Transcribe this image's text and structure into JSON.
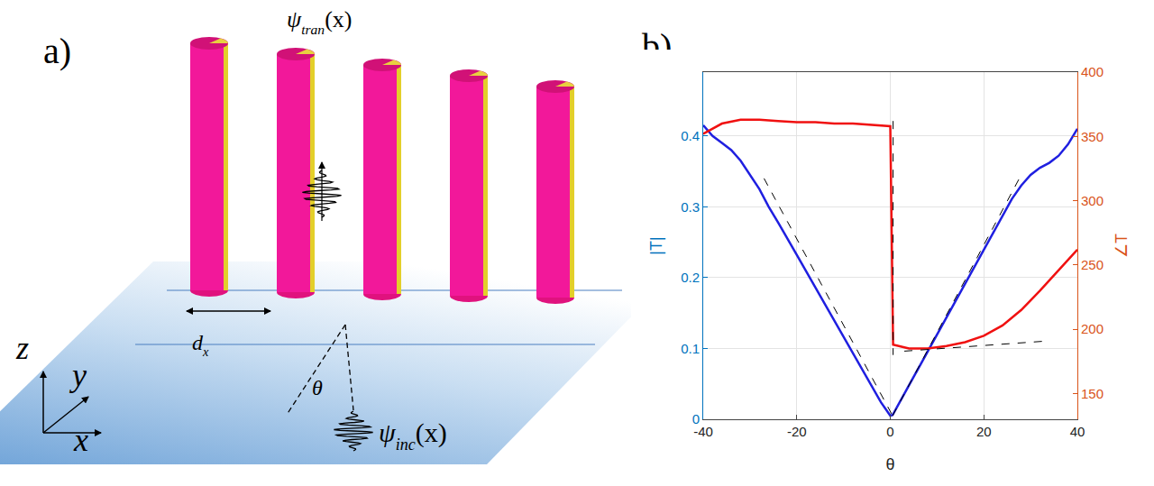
{
  "diagram": {
    "panel_label": "a)",
    "cylinders": 5,
    "labels": {
      "transmitted": {
        "symbol": "ψ",
        "sub": "tran",
        "arg": "(x)"
      },
      "incident": {
        "symbol": "ψ",
        "sub": "inc",
        "arg": "(x)"
      },
      "period": {
        "symbol": "d",
        "sub": "x"
      },
      "angle": "θ",
      "axes": [
        "z",
        "y",
        "x"
      ]
    }
  },
  "chart_data": {
    "type": "line",
    "panel_label": "b)",
    "x_label": "θ",
    "y_label": "|T|",
    "y2_label": "∠T",
    "xlim": [
      -40,
      40
    ],
    "xticks": [
      -40,
      -20,
      0,
      20,
      40
    ],
    "ylim": [
      0,
      0.49
    ],
    "yticks": [
      0,
      0.1,
      0.2,
      0.3,
      0.4
    ],
    "y2lim": [
      130,
      400
    ],
    "y2ticks": [
      150,
      200,
      250,
      300,
      350,
      400
    ],
    "grid": true,
    "series": [
      {
        "color": "#1f1fe0",
        "line_style": "solid",
        "x": [
          -40,
          -38,
          -36,
          -34,
          -32,
          -30,
          -28,
          -26,
          -24,
          -20,
          -16,
          -12,
          -8,
          -4,
          -2,
          0,
          0.5,
          2,
          4,
          8,
          12,
          16,
          20,
          24,
          26,
          28,
          30,
          32,
          34,
          36,
          38,
          40
        ],
        "values": [
          0.415,
          0.4,
          0.39,
          0.38,
          0.365,
          0.345,
          0.325,
          0.3,
          0.278,
          0.232,
          0.186,
          0.139,
          0.093,
          0.047,
          0.024,
          0.005,
          0.006,
          0.024,
          0.048,
          0.096,
          0.144,
          0.192,
          0.24,
          0.288,
          0.311,
          0.33,
          0.345,
          0.355,
          0.362,
          0.372,
          0.388,
          0.41
        ]
      },
      {
        "color": "#f01010",
        "line_style": "solid",
        "axis": "y2",
        "x": [
          -40,
          -36,
          -32,
          -28,
          -24,
          -20,
          -16,
          -12,
          -8,
          -4,
          -1,
          0,
          0.6,
          4,
          8,
          12,
          16,
          20,
          24,
          28,
          32,
          36,
          40
        ],
        "values": [
          352,
          360,
          363,
          363,
          362,
          361,
          361,
          360,
          360,
          359,
          358,
          358,
          188,
          185,
          185,
          187,
          190,
          195,
          203,
          215,
          230,
          246,
          262
        ]
      },
      {
        "color": "#000000",
        "line_style": "dash",
        "x": [
          -27,
          0.5
        ],
        "values": [
          0.34,
          0.005
        ]
      },
      {
        "color": "#000000",
        "line_style": "dash",
        "x": [
          0.5,
          28
        ],
        "values": [
          0.005,
          0.345
        ]
      },
      {
        "color": "#000000",
        "line_style": "dash",
        "axis": "y2",
        "x": [
          0.6,
          0.6
        ],
        "values": [
          362,
          180
        ]
      },
      {
        "color": "#000000",
        "line_style": "dash",
        "axis": "y2",
        "x": [
          3,
          34
        ],
        "values": [
          183,
          191
        ]
      }
    ]
  }
}
